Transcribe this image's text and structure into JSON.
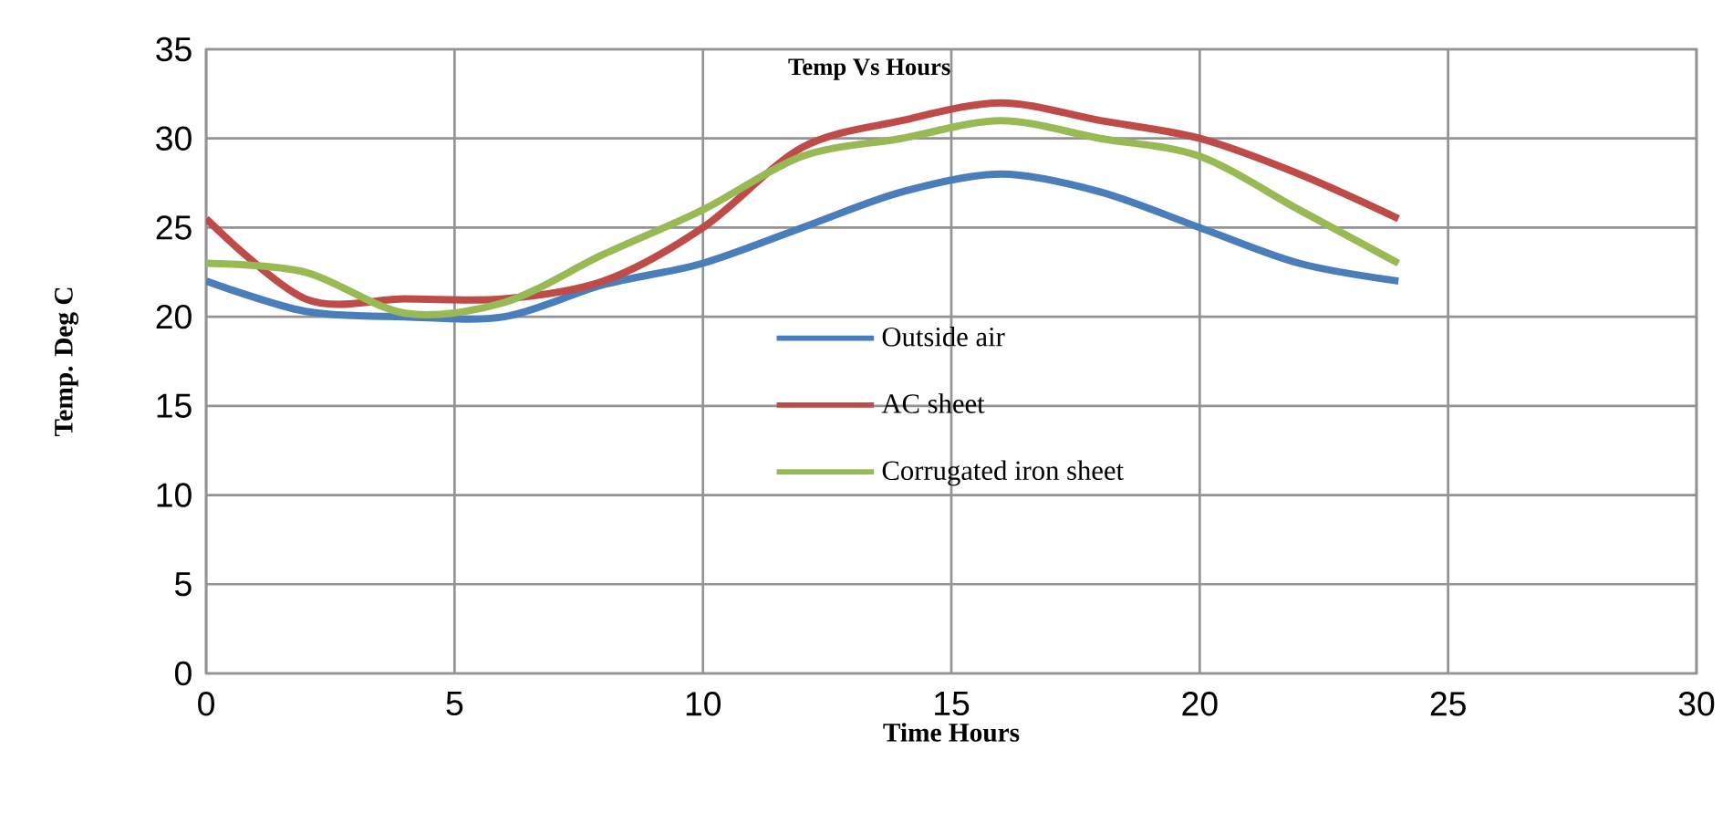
{
  "chart_data": {
    "type": "line",
    "title": "Temp Vs Hours",
    "xlabel": "Time Hours",
    "ylabel": "Temp. Deg C",
    "x": [
      0,
      2,
      4,
      6,
      8,
      10,
      12,
      14,
      16,
      18,
      20,
      22,
      24
    ],
    "series": [
      {
        "name": "Outside air",
        "color": "#4a7ebb",
        "values": [
          22,
          20.3,
          20,
          20,
          21.8,
          23,
          25,
          27,
          28,
          27,
          25,
          23,
          22
        ]
      },
      {
        "name": "AC sheet",
        "color": "#be4b48",
        "values": [
          25.5,
          21,
          21,
          21,
          22,
          25,
          29.5,
          31,
          32,
          31,
          30,
          28,
          25.5
        ]
      },
      {
        "name": "Corrugated iron sheet",
        "color": "#98b954",
        "values": [
          23,
          22.5,
          20.2,
          20.8,
          23.5,
          26,
          29,
          30,
          31,
          30,
          29,
          26,
          23
        ]
      }
    ],
    "xlim": [
      0,
      30
    ],
    "xticks": [
      0,
      5,
      10,
      15,
      20,
      25,
      30
    ],
    "ylim": [
      0,
      35
    ],
    "yticks": [
      0,
      5,
      10,
      15,
      20,
      25,
      30,
      35
    ],
    "grid": true,
    "legend": "center",
    "marker": "none",
    "line_style": "solid"
  }
}
